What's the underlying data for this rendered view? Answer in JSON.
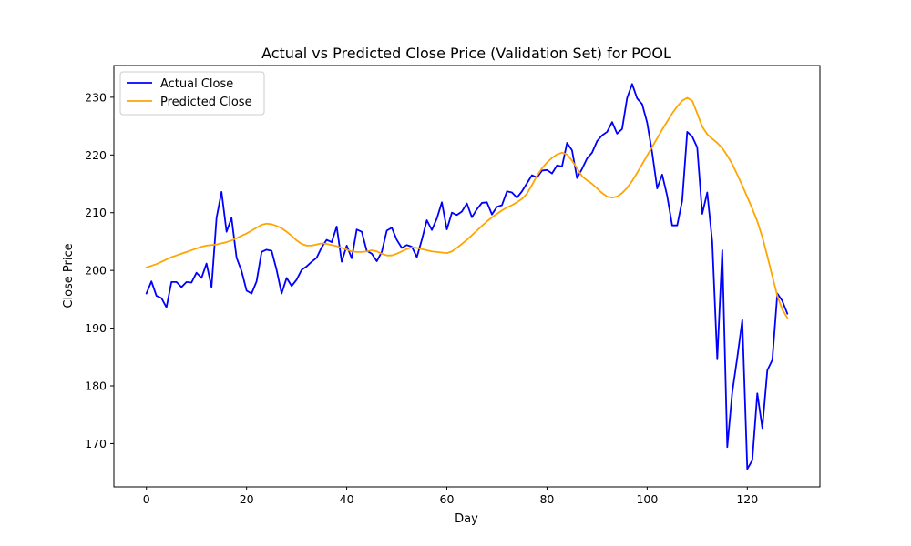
{
  "chart_data": {
    "type": "line",
    "title": "Actual vs Predicted Close Price (Validation Set) for POOL",
    "xlabel": "Day",
    "ylabel": "Close Price",
    "xlim": [
      -6.5,
      134.5
    ],
    "ylim": [
      162.5,
      235.5
    ],
    "xticks": [
      0,
      20,
      40,
      60,
      80,
      100,
      120
    ],
    "yticks": [
      170,
      180,
      190,
      200,
      210,
      220,
      230
    ],
    "grid": false,
    "legend_position": "top-left",
    "series": [
      {
        "name": "Actual Close",
        "color": "#0000ff",
        "values": [
          196.0,
          198.1,
          195.6,
          195.2,
          193.6,
          198.0,
          198.0,
          197.1,
          198.0,
          197.9,
          199.6,
          198.7,
          201.2,
          197.1,
          209.1,
          213.6,
          206.7,
          209.1,
          202.2,
          199.9,
          196.5,
          196.0,
          198.1,
          203.2,
          203.6,
          203.4,
          200.1,
          196.0,
          198.7,
          197.3,
          198.4,
          200.1,
          200.7,
          201.5,
          202.2,
          204.0,
          205.3,
          204.9,
          207.6,
          201.5,
          204.3,
          202.1,
          207.1,
          206.7,
          203.4,
          202.9,
          201.6,
          203.2,
          206.9,
          207.4,
          205.3,
          203.9,
          204.4,
          204.1,
          202.3,
          205.3,
          208.7,
          207.0,
          209.0,
          211.8,
          207.1,
          210.0,
          209.6,
          210.2,
          211.6,
          209.2,
          210.6,
          211.7,
          211.8,
          209.7,
          211.0,
          211.3,
          213.7,
          213.5,
          212.6,
          213.7,
          215.1,
          216.5,
          216.1,
          217.3,
          217.4,
          216.8,
          218.2,
          218.0,
          222.1,
          220.8,
          216.0,
          217.6,
          219.4,
          220.4,
          222.4,
          223.4,
          224.0,
          225.7,
          223.7,
          224.5,
          229.9,
          232.3,
          229.8,
          228.8,
          225.6,
          220.4,
          214.2,
          216.6,
          212.9,
          207.8,
          207.8,
          212.1,
          224.0,
          223.2,
          221.3,
          209.8,
          213.5,
          205.0,
          184.6,
          203.5,
          169.4,
          178.9,
          184.9,
          191.4,
          165.6,
          167.1,
          178.7,
          172.7,
          182.7,
          184.5,
          196.0,
          194.7,
          192.5
        ]
      },
      {
        "name": "Predicted Close",
        "color": "#ffa500",
        "values": [
          200.5,
          200.8,
          201.1,
          201.5,
          201.9,
          202.3,
          202.6,
          202.9,
          203.2,
          203.5,
          203.8,
          204.1,
          204.3,
          204.4,
          204.5,
          204.7,
          204.9,
          205.2,
          205.6,
          206.0,
          206.4,
          206.9,
          207.4,
          207.9,
          208.1,
          208.0,
          207.7,
          207.3,
          206.7,
          206.0,
          205.2,
          204.6,
          204.3,
          204.3,
          204.5,
          204.7,
          204.6,
          204.4,
          204.2,
          203.9,
          203.6,
          203.3,
          203.2,
          203.2,
          203.3,
          203.5,
          203.3,
          202.9,
          202.6,
          202.6,
          202.9,
          203.3,
          203.7,
          204.0,
          203.9,
          203.7,
          203.5,
          203.3,
          203.2,
          203.1,
          203.0,
          203.3,
          203.9,
          204.6,
          205.3,
          206.1,
          206.9,
          207.7,
          208.5,
          209.2,
          209.8,
          210.4,
          210.9,
          211.3,
          211.8,
          212.4,
          213.3,
          214.8,
          216.4,
          217.7,
          218.7,
          219.5,
          220.1,
          220.4,
          220.1,
          219.0,
          217.7,
          216.3,
          215.6,
          215.0,
          214.2,
          213.4,
          212.8,
          212.6,
          212.8,
          213.4,
          214.3,
          215.5,
          216.9,
          218.4,
          219.9,
          221.4,
          222.9,
          224.4,
          225.8,
          227.2,
          228.4,
          229.4,
          229.9,
          229.4,
          227.2,
          224.9,
          223.6,
          222.8,
          222.1,
          221.2,
          219.9,
          218.4,
          216.6,
          214.7,
          212.7,
          210.7,
          208.5,
          205.8,
          202.5,
          199.0,
          195.6,
          193.2,
          191.8
        ]
      }
    ]
  }
}
